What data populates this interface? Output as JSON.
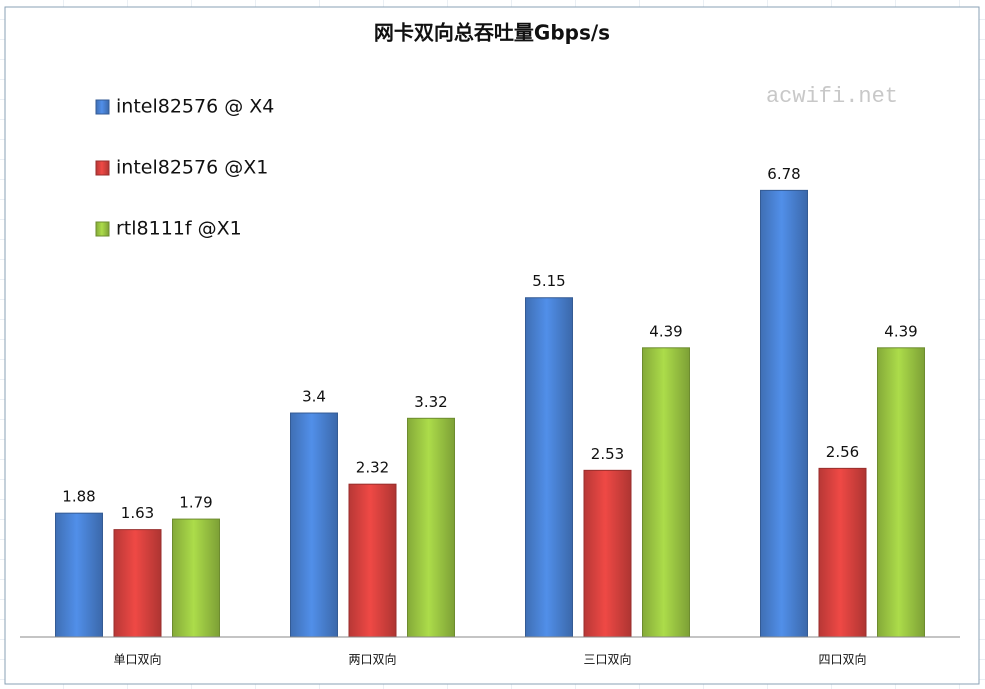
{
  "chart_data": {
    "type": "bar",
    "title": "网卡双向总吞吐量Gbps/s",
    "annotation": "acwifi.net",
    "categories": [
      "单口双向",
      "两口双向",
      "三口双向",
      "四口双向"
    ],
    "series": [
      {
        "name": "intel82576 @ X4",
        "color": "#4a82d4",
        "values": [
          1.88,
          3.4,
          5.15,
          6.78
        ]
      },
      {
        "name": "intel82576 @X1",
        "color": "#d9423f",
        "values": [
          1.63,
          2.32,
          2.53,
          2.56
        ]
      },
      {
        "name": "rtl8111f @X1",
        "color": "#9cc843",
        "values": [
          1.79,
          3.32,
          4.39,
          4.39
        ]
      }
    ],
    "ylim": [
      0,
      8
    ],
    "legend": "top-left"
  }
}
